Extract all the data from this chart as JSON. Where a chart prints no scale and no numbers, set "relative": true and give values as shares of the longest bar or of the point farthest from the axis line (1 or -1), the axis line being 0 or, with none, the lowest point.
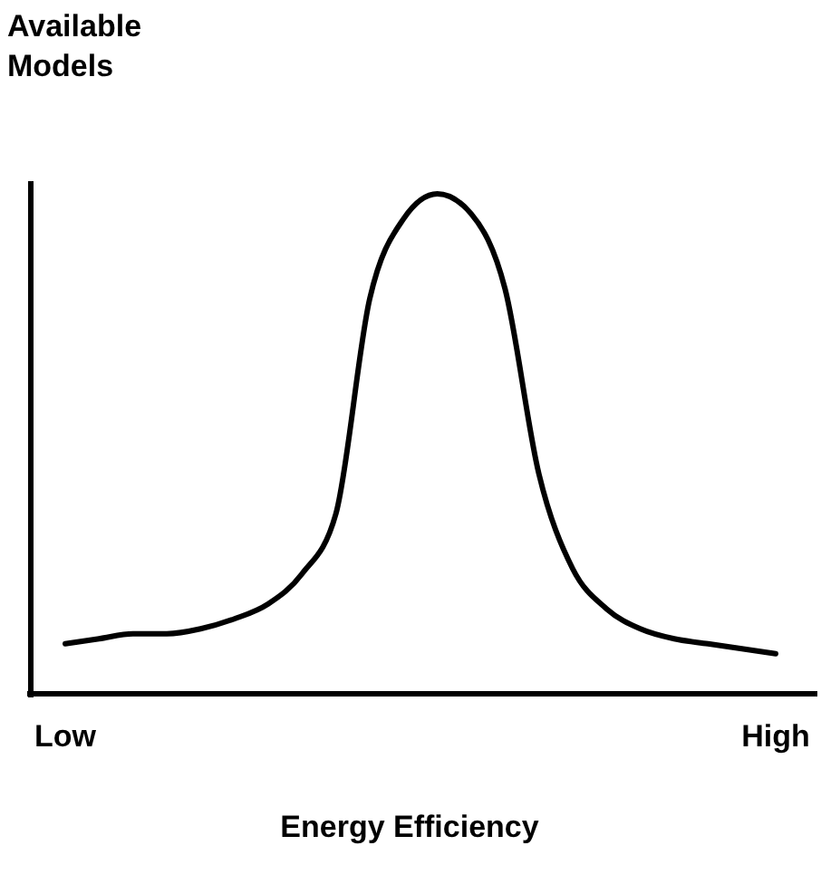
{
  "chart_data": {
    "type": "line",
    "relative": true,
    "ylabel": "Available Models",
    "xlabel": "Energy Efficiency",
    "categories": [
      "Low",
      null,
      null,
      null,
      null,
      null,
      null,
      null,
      null,
      null,
      null,
      null,
      null,
      null,
      null,
      null,
      null,
      null,
      null,
      null,
      null,
      "High"
    ],
    "series": [
      {
        "color": "#000000",
        "values": [
          0.1,
          0.11,
          0.12,
          0.12,
          0.13,
          0.15,
          0.18,
          0.24,
          0.36,
          0.79,
          0.95,
          1,
          0.96,
          0.81,
          0.44,
          0.25,
          0.17,
          0.13,
          0.11,
          0.1,
          0.09,
          0.08
        ]
      }
    ],
    "marker": "none",
    "line_style": "solid",
    "grid": false
  }
}
